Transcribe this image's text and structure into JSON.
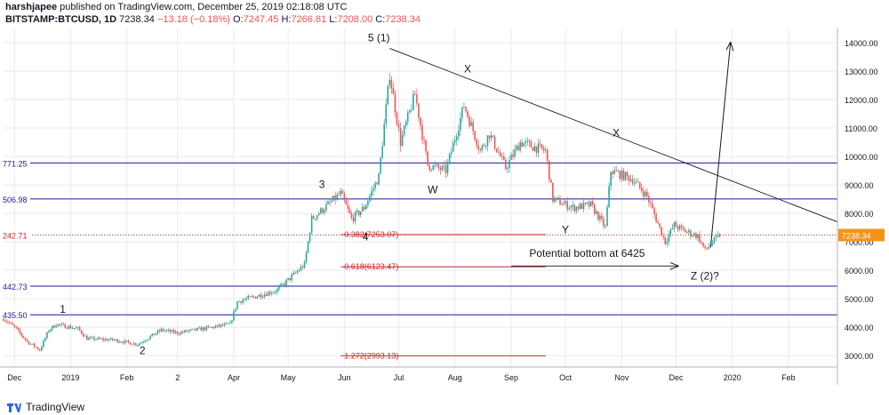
{
  "header": {
    "author": "harshjapee",
    "published": "published on TradingView.com, December 25, 2019 02:18:08 UTC",
    "symbol": "BITSTAMP:BTCUSD, 1D",
    "last": "7238.34",
    "change": "−13.18 (−0.18%)",
    "o_label": "O:",
    "o_value": "7247.45",
    "h_label": "H:",
    "h_value": "7266.81",
    "l_label": "L:",
    "l_value": "7208.00",
    "c_label": "C:",
    "c_value": "7238.34"
  },
  "footer": {
    "brand": "TradingView"
  },
  "colors": {
    "up": "#26a69a",
    "down": "#ef5350",
    "grid": "#e8eaf0",
    "hline": "#1a1aa0",
    "fib": "#c62828",
    "price_badge": "#f7931a"
  },
  "chart_data": {
    "type": "candlestick",
    "symbol": "BITSTAMP:BTCUSD",
    "interval": "1D",
    "x_start": "2018-11-25",
    "x_end": "2020-02-28",
    "ylim": [
      2600,
      14500
    ],
    "y_ticks": [
      3000,
      4000,
      5000,
      6000,
      7000,
      8000,
      9000,
      10000,
      11000,
      12000,
      13000,
      14000
    ],
    "y_tick_labels": [
      "3000.00",
      "4000.00",
      "5000.00",
      "6000.00",
      "7000.00",
      "8000.00",
      "9000.00",
      "10000.00",
      "11000.00",
      "12000.00",
      "13000.00",
      "14000.00"
    ],
    "x_ticks": [
      {
        "date": "2018-12-01",
        "label": "Dec"
      },
      {
        "date": "2019-01-01",
        "label": "2019"
      },
      {
        "date": "2019-02-01",
        "label": "Feb"
      },
      {
        "date": "2019-03-01",
        "label": "2"
      },
      {
        "date": "2019-04-01",
        "label": "Apr"
      },
      {
        "date": "2019-05-01",
        "label": "May"
      },
      {
        "date": "2019-06-01",
        "label": "Jun"
      },
      {
        "date": "2019-07-01",
        "label": "Jul"
      },
      {
        "date": "2019-08-01",
        "label": "Aug"
      },
      {
        "date": "2019-09-01",
        "label": "Sep"
      },
      {
        "date": "2019-10-01",
        "label": "Oct"
      },
      {
        "date": "2019-11-01",
        "label": "Nov"
      },
      {
        "date": "2019-12-01",
        "label": "Dec"
      },
      {
        "date": "2020-01-01",
        "label": "2020"
      },
      {
        "date": "2020-02-01",
        "label": "Feb"
      }
    ],
    "grid": true,
    "last_price": 7238.34,
    "last_price_label": "7238.34",
    "price_path": [
      [
        "2018-11-25",
        4300
      ],
      [
        "2018-12-01",
        4000
      ],
      [
        "2018-12-08",
        3500
      ],
      [
        "2018-12-15",
        3200
      ],
      [
        "2018-12-20",
        3900
      ],
      [
        "2018-12-24",
        4100
      ],
      [
        "2019-01-05",
        3950
      ],
      [
        "2019-01-10",
        3600
      ],
      [
        "2019-01-25",
        3550
      ],
      [
        "2019-02-07",
        3400
      ],
      [
        "2019-02-20",
        3900
      ],
      [
        "2019-03-01",
        3800
      ],
      [
        "2019-03-30",
        4100
      ],
      [
        "2019-04-03",
        4900
      ],
      [
        "2019-04-25",
        5300
      ],
      [
        "2019-05-10",
        6200
      ],
      [
        "2019-05-14",
        7800
      ],
      [
        "2019-05-30",
        8700
      ],
      [
        "2019-06-05",
        7800
      ],
      [
        "2019-06-12",
        8200
      ],
      [
        "2019-06-20",
        9300
      ],
      [
        "2019-06-26",
        12900
      ],
      [
        "2019-07-02",
        10500
      ],
      [
        "2019-07-10",
        12200
      ],
      [
        "2019-07-17",
        9700
      ],
      [
        "2019-07-27",
        9500
      ],
      [
        "2019-08-06",
        11800
      ],
      [
        "2019-08-15",
        10200
      ],
      [
        "2019-08-20",
        10800
      ],
      [
        "2019-08-29",
        9600
      ],
      [
        "2019-09-06",
        10500
      ],
      [
        "2019-09-20",
        10200
      ],
      [
        "2019-09-24",
        8500
      ],
      [
        "2019-10-05",
        8200
      ],
      [
        "2019-10-15",
        8300
      ],
      [
        "2019-10-23",
        7500
      ],
      [
        "2019-10-26",
        9500
      ],
      [
        "2019-11-07",
        9200
      ],
      [
        "2019-11-15",
        8600
      ],
      [
        "2019-11-25",
        7000
      ],
      [
        "2019-11-30",
        7600
      ],
      [
        "2019-12-05",
        7400
      ],
      [
        "2019-12-13",
        7200
      ],
      [
        "2019-12-17",
        6700
      ],
      [
        "2019-12-25",
        7238
      ]
    ],
    "horizontal_levels": [
      {
        "value": 9771.25,
        "label": "771.25",
        "style": "solid"
      },
      {
        "value": 8506.98,
        "label": "506.98",
        "style": "solid"
      },
      {
        "value": 7242.71,
        "label": "242.71",
        "style": "dotted"
      },
      {
        "value": 5442.73,
        "label": "442.73",
        "style": "solid"
      },
      {
        "value": 4435.5,
        "label": "435.50",
        "style": "solid"
      }
    ],
    "fib_levels": [
      {
        "value": 7253.07,
        "label": "0.382(7253.07)",
        "from": "2019-05-30",
        "to": "2019-09-20"
      },
      {
        "value": 6123.47,
        "label": "0.618(6123.47)",
        "from": "2019-05-30",
        "to": "2019-09-20"
      },
      {
        "value": 2993.13,
        "label": "1.272(2993.13)",
        "from": "2019-05-30",
        "to": "2019-09-20"
      }
    ],
    "trendline": {
      "from": [
        "2019-06-26",
        13800
      ],
      "to": [
        "2020-02-28",
        7700
      ]
    },
    "projection_arrow": {
      "from": [
        "2019-12-20",
        6800
      ],
      "to": [
        "2019-12-31",
        14000
      ]
    },
    "bottom_arrow": {
      "from": [
        "2019-09-01",
        6150
      ],
      "to": [
        "2019-12-02",
        6150
      ]
    },
    "annotations": [
      {
        "text": "5 (1)",
        "x": "2019-06-14",
        "y": 14050
      },
      {
        "text": "X",
        "x": "2019-08-06",
        "y": 12950
      },
      {
        "text": "X",
        "x": "2019-10-27",
        "y": 10700
      },
      {
        "text": "W",
        "x": "2019-07-17",
        "y": 8700
      },
      {
        "text": "3",
        "x": "2019-05-18",
        "y": 8900
      },
      {
        "text": "4",
        "x": "2019-06-11",
        "y": 7050
      },
      {
        "text": "Y",
        "x": "2019-09-29",
        "y": 7300
      },
      {
        "text": "1",
        "x": "2018-12-26",
        "y": 4500
      },
      {
        "text": "2",
        "x": "2019-02-08",
        "y": 3050
      },
      {
        "text": "Z (2)?",
        "x": "2019-12-09",
        "y": 5680
      },
      {
        "text": "Potential bottom at 6425",
        "x": "2019-09-11",
        "y": 6480
      }
    ]
  }
}
